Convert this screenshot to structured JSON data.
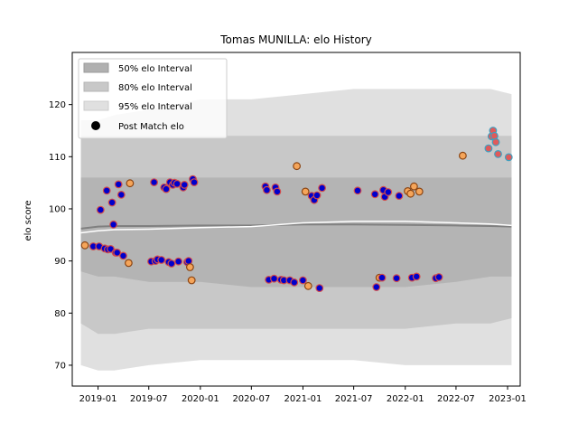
{
  "chart_data": {
    "type": "scatter",
    "title": "Tomas MUNILLA: elo History",
    "xlabel": "",
    "ylabel": "elo score",
    "xlim": [
      "2018-10-01",
      "2023-02-15"
    ],
    "ylim": [
      66,
      130
    ],
    "x_ticks": [
      "2019-01",
      "2019-07",
      "2020-01",
      "2020-07",
      "2021-01",
      "2021-07",
      "2022-01",
      "2022-07",
      "2023-01"
    ],
    "y_ticks": [
      70,
      80,
      90,
      100,
      110,
      120
    ],
    "legend": {
      "position": "top-left",
      "entries": [
        "50% elo Interval",
        "80% elo Interval",
        "95% elo Interval",
        "Post Match elo"
      ]
    },
    "colors": {
      "band_50": "#b0b0b0",
      "band_80": "#c8c8c8",
      "band_95": "#e0e0e0",
      "mean_line": "#808080",
      "white_line": "#ffffff",
      "point_win_fill": "#0000cc",
      "point_win_edge": "#d24b4b",
      "point_loss_fill": "#f5a55a",
      "point_loss_edge": "#8b4513",
      "point_recent_fill": "#e05a5a",
      "point_recent_edge": "#3fa0c0"
    },
    "bands": {
      "x": [
        "2018-11-01",
        "2019-01-01",
        "2019-03-01",
        "2019-07-01",
        "2020-01-01",
        "2020-07-01",
        "2021-01-01",
        "2021-07-01",
        "2022-01-01",
        "2022-07-01",
        "2022-11-01",
        "2023-01-15"
      ],
      "p95_upper": [
        117,
        117,
        118,
        119,
        121,
        121,
        122,
        123,
        123,
        123,
        123,
        122
      ],
      "p95_lower": [
        70,
        69,
        69,
        70,
        71,
        71,
        71,
        71,
        70,
        70,
        70,
        70
      ],
      "p80_upper": [
        114,
        114,
        114,
        114,
        114,
        114,
        114,
        114,
        114,
        114,
        114,
        114
      ],
      "p80_lower": [
        78,
        76,
        76,
        77,
        77,
        77,
        77,
        77,
        77,
        78,
        78,
        79
      ],
      "p50_upper": [
        106,
        106,
        106,
        106,
        106,
        106,
        106,
        106,
        106,
        106,
        106,
        106
      ],
      "p50_lower": [
        88,
        87,
        87,
        86,
        86,
        85,
        85,
        85,
        85,
        86,
        87,
        87
      ],
      "mean": [
        96.2,
        96.6,
        96.7,
        96.7,
        96.8,
        96.8,
        97.0,
        97.0,
        96.9,
        96.8,
        96.7,
        96.6
      ],
      "white": [
        95.4,
        95.8,
        96.0,
        96.1,
        96.4,
        96.6,
        97.3,
        97.6,
        97.6,
        97.3,
        97.1,
        96.8
      ]
    },
    "series": [
      {
        "name": "Post Match elo",
        "points": [
          {
            "x": "2018-11-15",
            "y": 93.0,
            "kind": "loss"
          },
          {
            "x": "2018-12-15",
            "y": 92.8,
            "kind": "win"
          },
          {
            "x": "2019-01-05",
            "y": 92.8,
            "kind": "win"
          },
          {
            "x": "2019-01-10",
            "y": 99.8,
            "kind": "win"
          },
          {
            "x": "2019-01-25",
            "y": 92.4,
            "kind": "win"
          },
          {
            "x": "2019-02-01",
            "y": 103.5,
            "kind": "win"
          },
          {
            "x": "2019-02-05",
            "y": 92.2,
            "kind": "win"
          },
          {
            "x": "2019-02-15",
            "y": 92.3,
            "kind": "win"
          },
          {
            "x": "2019-02-20",
            "y": 101.2,
            "kind": "win"
          },
          {
            "x": "2019-02-25",
            "y": 97.0,
            "kind": "win"
          },
          {
            "x": "2019-03-05",
            "y": 91.6,
            "kind": "win"
          },
          {
            "x": "2019-03-10",
            "y": 91.6,
            "kind": "win"
          },
          {
            "x": "2019-03-15",
            "y": 104.7,
            "kind": "win"
          },
          {
            "x": "2019-03-25",
            "y": 102.7,
            "kind": "win"
          },
          {
            "x": "2019-04-01",
            "y": 91.0,
            "kind": "win"
          },
          {
            "x": "2019-04-20",
            "y": 89.6,
            "kind": "loss"
          },
          {
            "x": "2019-04-25",
            "y": 104.9,
            "kind": "loss"
          },
          {
            "x": "2019-07-10",
            "y": 89.9,
            "kind": "win"
          },
          {
            "x": "2019-07-20",
            "y": 105.1,
            "kind": "win"
          },
          {
            "x": "2019-07-25",
            "y": 90.0,
            "kind": "win"
          },
          {
            "x": "2019-08-01",
            "y": 90.3,
            "kind": "win"
          },
          {
            "x": "2019-08-15",
            "y": 90.2,
            "kind": "win"
          },
          {
            "x": "2019-08-25",
            "y": 104.1,
            "kind": "win"
          },
          {
            "x": "2019-09-01",
            "y": 103.8,
            "kind": "win"
          },
          {
            "x": "2019-09-10",
            "y": 89.8,
            "kind": "win"
          },
          {
            "x": "2019-09-15",
            "y": 105.1,
            "kind": "win"
          },
          {
            "x": "2019-09-20",
            "y": 89.5,
            "kind": "win"
          },
          {
            "x": "2019-09-25",
            "y": 104.6,
            "kind": "win"
          },
          {
            "x": "2019-10-01",
            "y": 105.0,
            "kind": "win"
          },
          {
            "x": "2019-10-10",
            "y": 104.8,
            "kind": "win"
          },
          {
            "x": "2019-10-15",
            "y": 89.9,
            "kind": "win"
          },
          {
            "x": "2019-11-01",
            "y": 104.1,
            "kind": "win"
          },
          {
            "x": "2019-11-05",
            "y": 104.6,
            "kind": "win"
          },
          {
            "x": "2019-11-15",
            "y": 89.8,
            "kind": "win"
          },
          {
            "x": "2019-11-20",
            "y": 90.0,
            "kind": "win"
          },
          {
            "x": "2019-11-25",
            "y": 88.8,
            "kind": "loss"
          },
          {
            "x": "2019-12-01",
            "y": 86.3,
            "kind": "loss"
          },
          {
            "x": "2019-12-05",
            "y": 105.7,
            "kind": "win"
          },
          {
            "x": "2019-12-10",
            "y": 105.1,
            "kind": "win"
          },
          {
            "x": "2020-08-20",
            "y": 104.3,
            "kind": "win"
          },
          {
            "x": "2020-08-25",
            "y": 103.6,
            "kind": "win"
          },
          {
            "x": "2020-09-01",
            "y": 86.4,
            "kind": "win"
          },
          {
            "x": "2020-09-20",
            "y": 86.6,
            "kind": "win"
          },
          {
            "x": "2020-09-25",
            "y": 104.1,
            "kind": "win"
          },
          {
            "x": "2020-10-01",
            "y": 103.3,
            "kind": "win"
          },
          {
            "x": "2020-10-15",
            "y": 86.4,
            "kind": "win"
          },
          {
            "x": "2020-10-25",
            "y": 86.3,
            "kind": "win"
          },
          {
            "x": "2020-11-15",
            "y": 86.3,
            "kind": "win"
          },
          {
            "x": "2020-12-01",
            "y": 85.9,
            "kind": "win"
          },
          {
            "x": "2020-12-10",
            "y": 108.2,
            "kind": "loss"
          },
          {
            "x": "2021-01-01",
            "y": 86.3,
            "kind": "win"
          },
          {
            "x": "2021-01-10",
            "y": 103.3,
            "kind": "loss"
          },
          {
            "x": "2021-01-20",
            "y": 85.2,
            "kind": "loss"
          },
          {
            "x": "2021-02-01",
            "y": 102.5,
            "kind": "win"
          },
          {
            "x": "2021-02-10",
            "y": 101.7,
            "kind": "win"
          },
          {
            "x": "2021-02-20",
            "y": 102.6,
            "kind": "win"
          },
          {
            "x": "2021-03-01",
            "y": 84.8,
            "kind": "win"
          },
          {
            "x": "2021-03-10",
            "y": 104.0,
            "kind": "win"
          },
          {
            "x": "2021-07-15",
            "y": 103.5,
            "kind": "win"
          },
          {
            "x": "2021-09-15",
            "y": 102.8,
            "kind": "win"
          },
          {
            "x": "2021-09-20",
            "y": 85.0,
            "kind": "win"
          },
          {
            "x": "2021-10-01",
            "y": 86.8,
            "kind": "loss"
          },
          {
            "x": "2021-10-10",
            "y": 86.8,
            "kind": "win"
          },
          {
            "x": "2021-10-15",
            "y": 103.6,
            "kind": "win"
          },
          {
            "x": "2021-10-20",
            "y": 102.3,
            "kind": "win"
          },
          {
            "x": "2021-11-01",
            "y": 103.2,
            "kind": "win"
          },
          {
            "x": "2021-12-01",
            "y": 86.7,
            "kind": "win"
          },
          {
            "x": "2021-12-10",
            "y": 102.5,
            "kind": "win"
          },
          {
            "x": "2022-01-10",
            "y": 103.4,
            "kind": "loss"
          },
          {
            "x": "2022-01-20",
            "y": 102.9,
            "kind": "loss"
          },
          {
            "x": "2022-01-25",
            "y": 86.8,
            "kind": "win"
          },
          {
            "x": "2022-02-01",
            "y": 104.3,
            "kind": "loss"
          },
          {
            "x": "2022-02-10",
            "y": 87.0,
            "kind": "win"
          },
          {
            "x": "2022-02-20",
            "y": 103.3,
            "kind": "loss"
          },
          {
            "x": "2022-04-20",
            "y": 86.7,
            "kind": "win"
          },
          {
            "x": "2022-05-01",
            "y": 86.9,
            "kind": "win"
          },
          {
            "x": "2022-07-25",
            "y": 110.2,
            "kind": "loss"
          },
          {
            "x": "2022-10-25",
            "y": 111.6,
            "kind": "recent"
          },
          {
            "x": "2022-11-05",
            "y": 113.9,
            "kind": "recent"
          },
          {
            "x": "2022-11-10",
            "y": 115.0,
            "kind": "recent"
          },
          {
            "x": "2022-11-15",
            "y": 114.0,
            "kind": "recent"
          },
          {
            "x": "2022-11-20",
            "y": 112.8,
            "kind": "recent"
          },
          {
            "x": "2022-11-28",
            "y": 110.5,
            "kind": "recent"
          },
          {
            "x": "2023-01-05",
            "y": 109.9,
            "kind": "recent"
          }
        ]
      }
    ]
  }
}
